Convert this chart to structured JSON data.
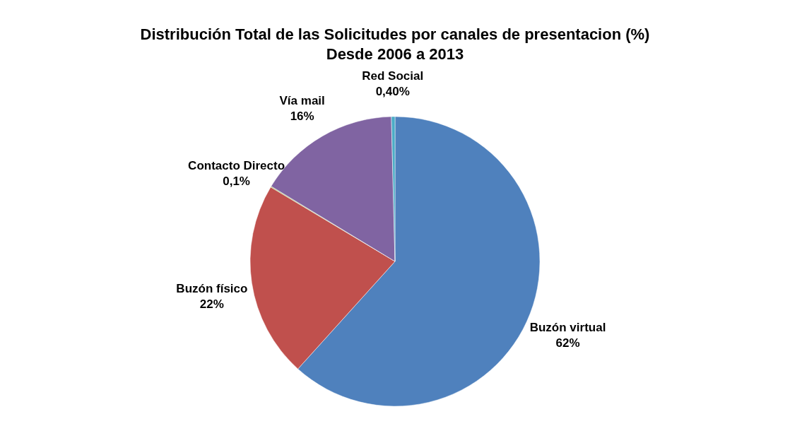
{
  "chart_data": {
    "type": "pie",
    "title": "Distribución Total de las Solicitudes por canales de presentacion (%)",
    "subtitle": "Desde 2006 a 2013",
    "categories": [
      "Buzón virtual",
      "Buzón físico",
      "Contacto Directo",
      "Vía mail",
      "Red Social"
    ],
    "values": [
      62,
      22,
      0.1,
      16,
      0.4
    ],
    "value_labels": [
      "62%",
      "22%",
      "0,1%",
      "16%",
      "0,40%"
    ],
    "colors": [
      "#4f81bd",
      "#c0504d",
      "#9bbb59",
      "#8064a2",
      "#4bacc6"
    ]
  }
}
